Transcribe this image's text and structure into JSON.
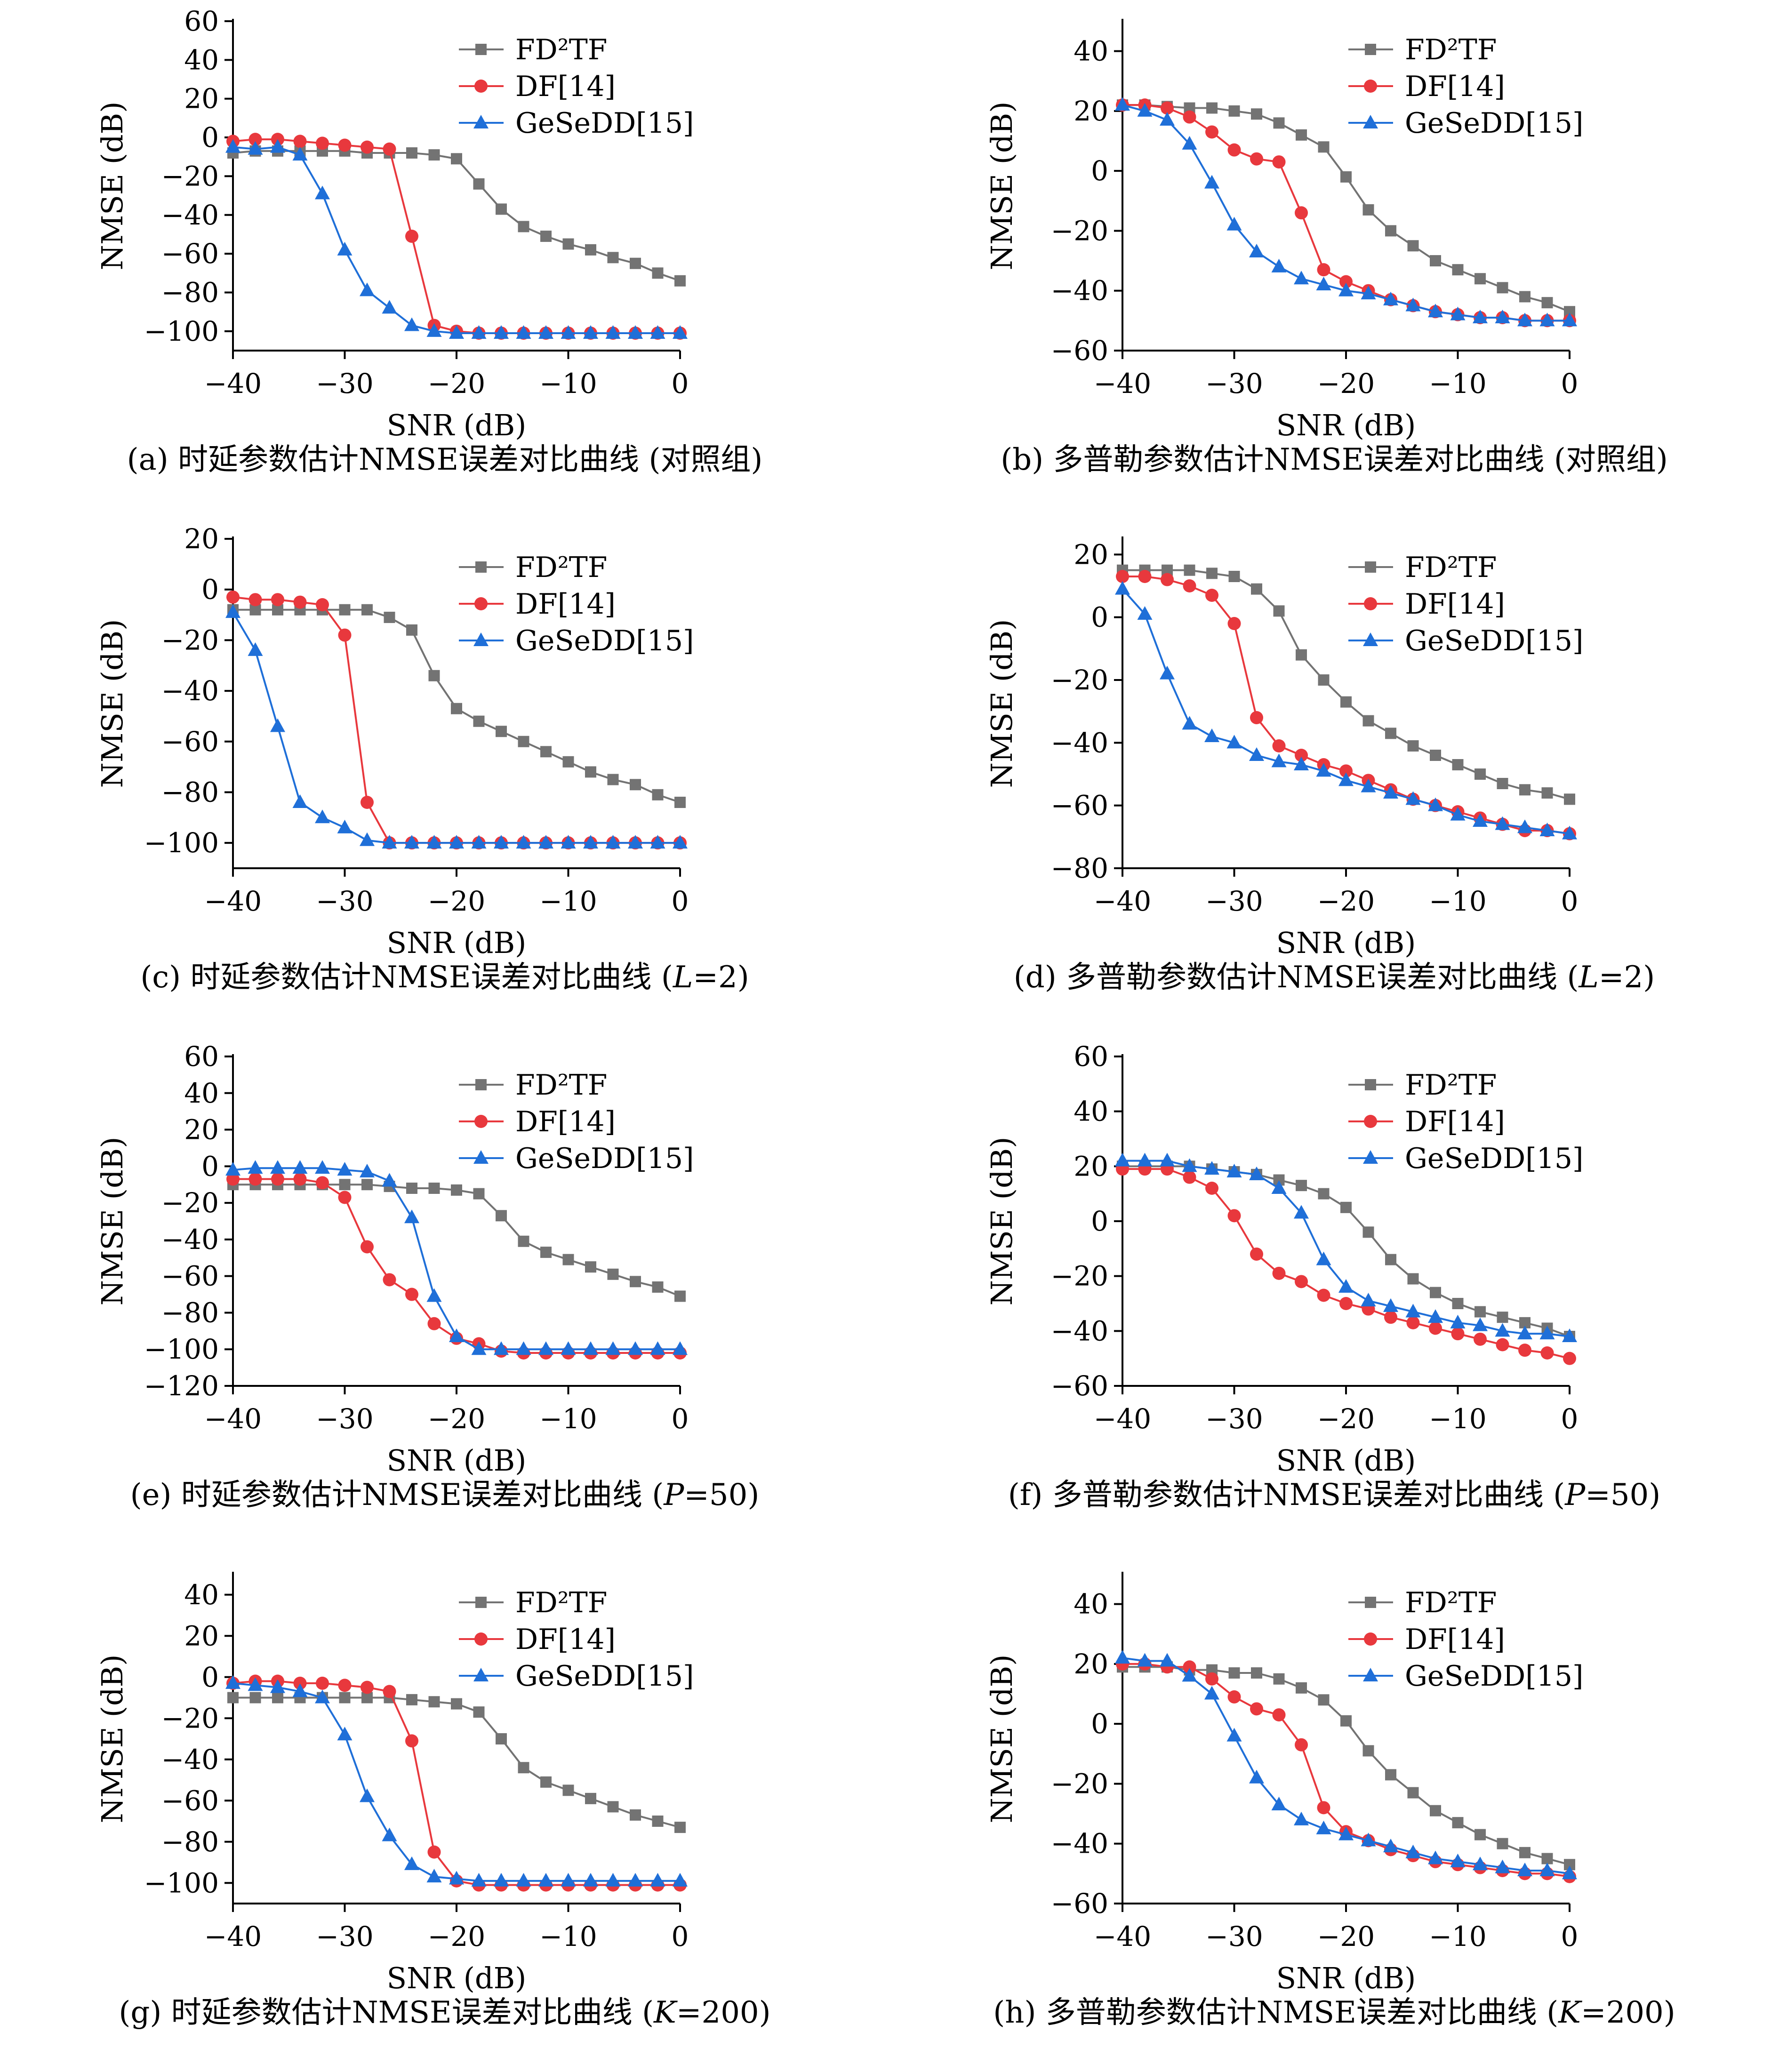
{
  "colors": {
    "series": [
      "#737373",
      "#e8383d",
      "#1f6fd8"
    ],
    "markers": [
      "square",
      "circle",
      "triangle"
    ]
  },
  "chart_data": [
    {
      "id": "a",
      "type": "line",
      "caption": "(a) 时延参数估计NMSE误差对比曲线 (对照组)",
      "xlabel": "SNR (dB)",
      "ylabel": "NMSE (dB)",
      "xlim": [
        -40,
        0
      ],
      "ylim": [
        -110,
        60
      ],
      "yticks": [
        60,
        40,
        20,
        0,
        -20,
        -40,
        -60,
        -80,
        -100
      ],
      "xticks": [
        -40,
        -30,
        -20,
        -10,
        0
      ],
      "legend": "top-right",
      "x": [
        -40,
        -38,
        -36,
        -34,
        -32,
        -30,
        -28,
        -26,
        -24,
        -22,
        -20,
        -18,
        -16,
        -14,
        -12,
        -10,
        -8,
        -6,
        -4,
        -2,
        0
      ],
      "series": [
        {
          "name": "FD²TF",
          "values": [
            -8,
            -7,
            -7,
            -7,
            -7,
            -7,
            -8,
            -8,
            -8,
            -9,
            -11,
            -24,
            -37,
            -46,
            -51,
            -55,
            -58,
            -62,
            -65,
            -70,
            -74
          ]
        },
        {
          "name": "DF[14]",
          "values": [
            -2,
            -1,
            -1,
            -2,
            -3,
            -4,
            -5,
            -6,
            -51,
            -97,
            -100,
            -101,
            -101,
            -101,
            -101,
            -101,
            -101,
            -101,
            -101,
            -101,
            -101
          ]
        },
        {
          "name": "GeSeDD[15]",
          "values": [
            -5,
            -6,
            -5,
            -9,
            -29,
            -58,
            -79,
            -88,
            -97,
            -100,
            -101,
            -101,
            -101,
            -101,
            -101,
            -101,
            -101,
            -101,
            -101,
            -101,
            -101
          ]
        }
      ]
    },
    {
      "id": "b",
      "type": "line",
      "caption": "(b) 多普勒参数估计NMSE误差对比曲线 (对照组)",
      "xlabel": "SNR (dB)",
      "ylabel": "NMSE (dB)",
      "xlim": [
        -40,
        0
      ],
      "ylim": [
        -60,
        50
      ],
      "yticks": [
        40,
        20,
        0,
        -20,
        -40,
        -60
      ],
      "xticks": [
        -40,
        -30,
        -20,
        -10,
        0
      ],
      "legend": "top-right",
      "x": [
        -40,
        -38,
        -36,
        -34,
        -32,
        -30,
        -28,
        -26,
        -24,
        -22,
        -20,
        -18,
        -16,
        -14,
        -12,
        -10,
        -8,
        -6,
        -4,
        -2,
        0
      ],
      "series": [
        {
          "name": "FD²TF",
          "values": [
            22,
            22,
            21.5,
            21,
            21,
            20,
            19,
            16,
            12,
            8,
            -2,
            -13,
            -20,
            -25,
            -30,
            -33,
            -36,
            -39,
            -42,
            -44,
            -47
          ]
        },
        {
          "name": "DF[14]",
          "values": [
            22,
            22,
            21,
            18,
            13,
            7,
            4,
            3,
            -14,
            -33,
            -37,
            -40,
            -43,
            -45,
            -47,
            -48,
            -49,
            -49,
            -50,
            -50,
            -50
          ]
        },
        {
          "name": "GeSeDD[15]",
          "values": [
            22,
            20,
            17,
            9,
            -4,
            -18,
            -27,
            -32,
            -36,
            -38,
            -40,
            -41,
            -43,
            -45,
            -47,
            -48,
            -49,
            -49,
            -50,
            -50,
            -50
          ]
        }
      ]
    },
    {
      "id": "c",
      "type": "line",
      "caption": "(c) 时延参数估计NMSE误差对比曲线 (",
      "caption_var": "L",
      "caption_tail": "=2)",
      "xlabel": "SNR (dB)",
      "ylabel": "NMSE (dB)",
      "xlim": [
        -40,
        0
      ],
      "ylim": [
        -110,
        20
      ],
      "yticks": [
        20,
        0,
        -20,
        -40,
        -60,
        -80,
        -100
      ],
      "xticks": [
        -40,
        -30,
        -20,
        -10,
        0
      ],
      "legend": "top-right",
      "x": [
        -40,
        -38,
        -36,
        -34,
        -32,
        -30,
        -28,
        -26,
        -24,
        -22,
        -20,
        -18,
        -16,
        -14,
        -12,
        -10,
        -8,
        -6,
        -4,
        -2,
        0
      ],
      "series": [
        {
          "name": "FD²TF",
          "values": [
            -8,
            -8,
            -8,
            -8,
            -8,
            -8,
            -8,
            -11,
            -16,
            -34,
            -47,
            -52,
            -56,
            -60,
            -64,
            -68,
            -72,
            -75,
            -77,
            -81,
            -84
          ]
        },
        {
          "name": "DF[14]",
          "values": [
            -3,
            -4,
            -4,
            -5,
            -6,
            -18,
            -84,
            -100,
            -100,
            -100,
            -100,
            -100,
            -100,
            -100,
            -100,
            -100,
            -100,
            -100,
            -100,
            -100,
            -100
          ]
        },
        {
          "name": "GeSeDD[15]",
          "values": [
            -9,
            -24,
            -54,
            -84,
            -90,
            -94,
            -99,
            -100,
            -100,
            -100,
            -100,
            -100,
            -100,
            -100,
            -100,
            -100,
            -100,
            -100,
            -100,
            -100,
            -100
          ]
        }
      ]
    },
    {
      "id": "d",
      "type": "line",
      "caption": "(d) 多普勒参数估计NMSE误差对比曲线 (",
      "caption_var": "L",
      "caption_tail": "=2)",
      "xlabel": "SNR (dB)",
      "ylabel": "NMSE (dB)",
      "xlim": [
        -40,
        0
      ],
      "ylim": [
        -80,
        25
      ],
      "yticks": [
        20,
        0,
        -20,
        -40,
        -60,
        -80
      ],
      "xticks": [
        -40,
        -30,
        -20,
        -10,
        0
      ],
      "legend": "top-right",
      "x": [
        -40,
        -38,
        -36,
        -34,
        -32,
        -30,
        -28,
        -26,
        -24,
        -22,
        -20,
        -18,
        -16,
        -14,
        -12,
        -10,
        -8,
        -6,
        -4,
        -2,
        0
      ],
      "series": [
        {
          "name": "FD²TF",
          "values": [
            15,
            15,
            15,
            15,
            14,
            13,
            9,
            2,
            -12,
            -20,
            -27,
            -33,
            -37,
            -41,
            -44,
            -47,
            -50,
            -53,
            -55,
            -56,
            -58
          ]
        },
        {
          "name": "DF[14]",
          "values": [
            13,
            13,
            12,
            10,
            7,
            -2,
            -32,
            -41,
            -44,
            -47,
            -49,
            -52,
            -55,
            -58,
            -60,
            -62,
            -64,
            -66,
            -68,
            -68,
            -69
          ]
        },
        {
          "name": "GeSeDD[15]",
          "values": [
            9,
            1,
            -18,
            -34,
            -38,
            -40,
            -44,
            -46,
            -47,
            -49,
            -52,
            -54,
            -56,
            -58,
            -60,
            -63,
            -65,
            -66,
            -67,
            -68,
            -69
          ]
        }
      ]
    },
    {
      "id": "e",
      "type": "line",
      "caption": "(e) 时延参数估计NMSE误差对比曲线 (",
      "caption_var": "P",
      "caption_tail": "=50)",
      "xlabel": "SNR (dB)",
      "ylabel": "NMSE (dB)",
      "xlim": [
        -40,
        0
      ],
      "ylim": [
        -120,
        60
      ],
      "yticks": [
        60,
        40,
        20,
        0,
        -20,
        -40,
        -60,
        -80,
        -100,
        -120
      ],
      "xticks": [
        -40,
        -30,
        -20,
        -10,
        0
      ],
      "legend": "top-right",
      "x": [
        -40,
        -38,
        -36,
        -34,
        -32,
        -30,
        -28,
        -26,
        -24,
        -22,
        -20,
        -18,
        -16,
        -14,
        -12,
        -10,
        -8,
        -6,
        -4,
        -2,
        0
      ],
      "series": [
        {
          "name": "FD²TF",
          "values": [
            -10,
            -10,
            -10,
            -10,
            -10,
            -10,
            -10,
            -11,
            -12,
            -12,
            -13,
            -15,
            -27,
            -41,
            -47,
            -51,
            -55,
            -59,
            -63,
            -66,
            -71
          ]
        },
        {
          "name": "DF[14]",
          "values": [
            -7,
            -7,
            -7,
            -7,
            -9,
            -17,
            -44,
            -62,
            -70,
            -86,
            -94,
            -97,
            -101,
            -102,
            -102,
            -102,
            -102,
            -102,
            -102,
            -102,
            -102
          ]
        },
        {
          "name": "GeSeDD[15]",
          "values": [
            -2,
            -1,
            -1,
            -1,
            -1,
            -2,
            -3,
            -8,
            -28,
            -71,
            -93,
            -100,
            -100,
            -100,
            -100,
            -100,
            -100,
            -100,
            -100,
            -100,
            -100
          ]
        }
      ]
    },
    {
      "id": "f",
      "type": "line",
      "caption": "(f) 多普勒参数估计NMSE误差对比曲线 (",
      "caption_var": "P",
      "caption_tail": "=50)",
      "xlabel": "SNR (dB)",
      "ylabel": "NMSE (dB)",
      "xlim": [
        -40,
        0
      ],
      "ylim": [
        -60,
        60
      ],
      "yticks": [
        60,
        40,
        20,
        0,
        -20,
        -40,
        -60
      ],
      "xticks": [
        -40,
        -30,
        -20,
        -10,
        0
      ],
      "legend": "top-right",
      "x": [
        -40,
        -38,
        -36,
        -34,
        -32,
        -30,
        -28,
        -26,
        -24,
        -22,
        -20,
        -18,
        -16,
        -14,
        -12,
        -10,
        -8,
        -6,
        -4,
        -2,
        0
      ],
      "series": [
        {
          "name": "FD²TF",
          "values": [
            20,
            20,
            20,
            20,
            19,
            18,
            17,
            15,
            13,
            10,
            5,
            -4,
            -14,
            -21,
            -26,
            -30,
            -33,
            -35,
            -37,
            -39,
            -42
          ]
        },
        {
          "name": "DF[14]",
          "values": [
            19,
            19,
            19,
            16,
            12,
            2,
            -12,
            -19,
            -22,
            -27,
            -30,
            -32,
            -35,
            -37,
            -39,
            -41,
            -43,
            -45,
            -47,
            -48,
            -50
          ]
        },
        {
          "name": "GeSeDD[15]",
          "values": [
            22,
            22,
            22,
            20,
            19,
            18,
            17,
            12,
            3,
            -14,
            -24,
            -29,
            -31,
            -33,
            -35,
            -37,
            -38,
            -40,
            -41,
            -41,
            -42
          ]
        }
      ]
    },
    {
      "id": "g",
      "type": "line",
      "caption": "(g) 时延参数估计NMSE误差对比曲线 (",
      "caption_var": "K",
      "caption_tail": "=200)",
      "xlabel": "SNR (dB)",
      "ylabel": "NMSE (dB)",
      "xlim": [
        -40,
        0
      ],
      "ylim": [
        -110,
        50
      ],
      "yticks": [
        40,
        20,
        0,
        -20,
        -40,
        -60,
        -80,
        -100
      ],
      "xticks": [
        -40,
        -30,
        -20,
        -10,
        0
      ],
      "legend": "top-right",
      "x": [
        -40,
        -38,
        -36,
        -34,
        -32,
        -30,
        -28,
        -26,
        -24,
        -22,
        -20,
        -18,
        -16,
        -14,
        -12,
        -10,
        -8,
        -6,
        -4,
        -2,
        0
      ],
      "series": [
        {
          "name": "FD²TF",
          "values": [
            -10,
            -10,
            -10,
            -10,
            -10,
            -10,
            -10,
            -10,
            -11,
            -12,
            -13,
            -17,
            -30,
            -44,
            -51,
            -55,
            -59,
            -63,
            -67,
            -70,
            -73
          ]
        },
        {
          "name": "DF[14]",
          "values": [
            -3,
            -2,
            -2,
            -3,
            -3,
            -4,
            -5,
            -7,
            -31,
            -85,
            -99,
            -101,
            -101,
            -101,
            -101,
            -101,
            -101,
            -101,
            -101,
            -101,
            -101
          ]
        },
        {
          "name": "GeSeDD[15]",
          "values": [
            -3,
            -4,
            -5,
            -7,
            -10,
            -28,
            -58,
            -77,
            -91,
            -97,
            -98,
            -99,
            -99,
            -99,
            -99,
            -99,
            -99,
            -99,
            -99,
            -99,
            -99
          ]
        }
      ]
    },
    {
      "id": "h",
      "type": "line",
      "caption": "(h) 多普勒参数估计NMSE误差对比曲线 (",
      "caption_var": "K",
      "caption_tail": "=200)",
      "xlabel": "SNR (dB)",
      "ylabel": "NMSE (dB)",
      "xlim": [
        -40,
        0
      ],
      "ylim": [
        -60,
        50
      ],
      "yticks": [
        40,
        20,
        0,
        -20,
        -40,
        -60
      ],
      "xticks": [
        -40,
        -30,
        -20,
        -10,
        0
      ],
      "legend": "top-right",
      "x": [
        -40,
        -38,
        -36,
        -34,
        -32,
        -30,
        -28,
        -26,
        -24,
        -22,
        -20,
        -18,
        -16,
        -14,
        -12,
        -10,
        -8,
        -6,
        -4,
        -2,
        0
      ],
      "series": [
        {
          "name": "FD²TF",
          "values": [
            19,
            19,
            19,
            18,
            18,
            17,
            17,
            15,
            12,
            8,
            1,
            -9,
            -17,
            -23,
            -29,
            -33,
            -37,
            -40,
            -43,
            -45,
            -47
          ]
        },
        {
          "name": "DF[14]",
          "values": [
            20,
            20,
            19,
            19,
            15,
            9,
            5,
            3,
            -7,
            -28,
            -36,
            -39,
            -42,
            -44,
            -46,
            -47,
            -48,
            -49,
            -50,
            -50,
            -51
          ]
        },
        {
          "name": "GeSeDD[15]",
          "values": [
            22,
            21,
            21,
            16,
            10,
            -4,
            -18,
            -27,
            -32,
            -35,
            -37,
            -39,
            -41,
            -43,
            -45,
            -46,
            -47,
            -48,
            -49,
            -49,
            -50
          ]
        }
      ]
    }
  ]
}
